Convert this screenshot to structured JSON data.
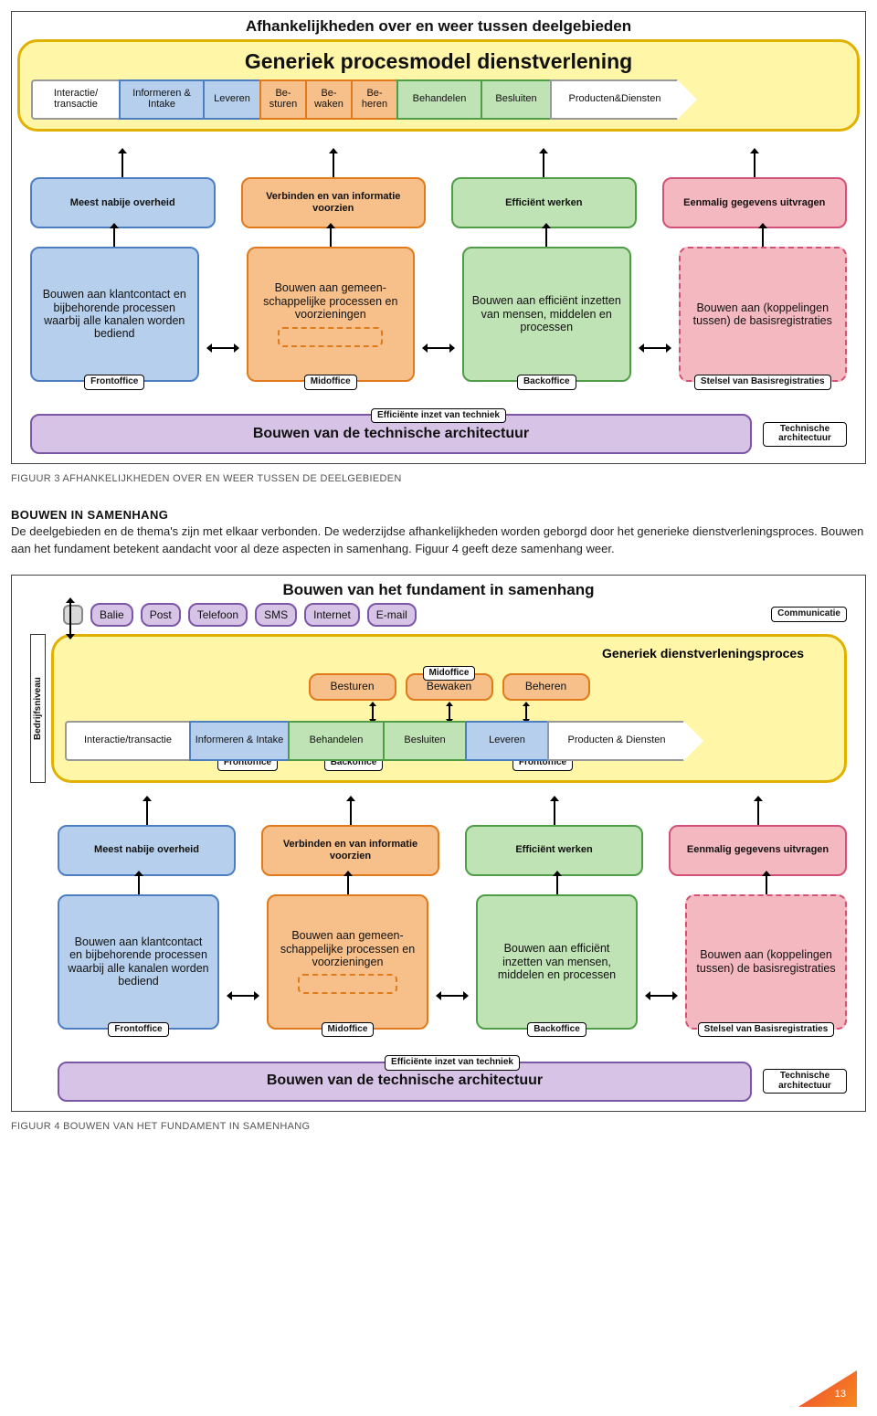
{
  "page_number": "13",
  "caption1": "FIGUUR 3 AFHANKELIJKHEDEN OVER EN WEER TUSSEN DE DEELGEBIEDEN",
  "caption2": "FIGUUR 4 BOUWEN VAN HET FUNDAMENT IN SAMENHANG",
  "section_heading": "BOUWEN IN SAMENHANG",
  "body_text": "De deelgebieden en de thema's zijn met elkaar verbonden. De wederzijdse afhankelijkheden worden geborgd door het generieke dienstverleningsproces. Bouwen aan het fundament betekent aandacht voor al deze aspecten in samenhang. Figuur 4 geeft deze samenhang weer.",
  "colors": {
    "yellow_fill": "#fff39b",
    "yellow_border": "#d7a600",
    "blue_fill": "#b6cfec",
    "blue_border": "#4e7ec2",
    "orange_fill": "#f7c08b",
    "orange_border": "#e07a1b",
    "green_fill": "#bfe3b4",
    "green_border": "#4f9d46",
    "pink_fill": "#f4b8c1",
    "pink_border": "#d35077",
    "purple_fill": "#d7c3e6",
    "purple_border": "#7b57a6",
    "grey_fill": "#d9d9d9",
    "grey_border": "#777"
  },
  "figure3": {
    "title": "Afhankelijkheden over en weer tussen deelgebieden",
    "yellow_header": "Generiek procesmodel dienstverlening",
    "process_steps": [
      {
        "label": "Interactie/ transactie",
        "fill": "#ffffff",
        "border": "#999999"
      },
      {
        "label": "Informeren & Intake",
        "fill": "#b6cfec",
        "border": "#4e7ec2"
      },
      {
        "label": "Leveren",
        "fill": "#b6cfec",
        "border": "#4e7ec2"
      },
      {
        "label": "Be- sturen",
        "fill": "#f7c08b",
        "border": "#e07a1b"
      },
      {
        "label": "Be- waken",
        "fill": "#f7c08b",
        "border": "#e07a1b"
      },
      {
        "label": "Be- heren",
        "fill": "#f7c08b",
        "border": "#e07a1b"
      },
      {
        "label": "Behandelen",
        "fill": "#bfe3b4",
        "border": "#4f9d46"
      },
      {
        "label": "Besluiten",
        "fill": "#bfe3b4",
        "border": "#4f9d46"
      },
      {
        "label": "Producten&Diensten",
        "fill": "#ffffff",
        "border": "#999999"
      }
    ],
    "themas": [
      {
        "label": "Meest nabije overheid",
        "fill": "#b6cfec",
        "border": "#4e7ec2"
      },
      {
        "label": "Verbinden en van informatie voorzien",
        "fill": "#f7c08b",
        "border": "#e07a1b"
      },
      {
        "label": "Efficiënt werken",
        "fill": "#bfe3b4",
        "border": "#4f9d46"
      },
      {
        "label": "Eenmalig gegevens uitvragen",
        "fill": "#f4b8c1",
        "border": "#d35077"
      }
    ],
    "pillars": [
      {
        "label": "Bouwen aan klantcontact en bijbehorende processen waarbij alle kanalen worden bediend",
        "fill": "#b6cfec",
        "border": "#4e7ec2",
        "bottom": "Frontoffice"
      },
      {
        "label": "Bouwen aan gemeen-schappelijke processen en voorzieningen",
        "fill": "#f7c08b",
        "border": "#e07a1b",
        "bottom": "Midoffice",
        "dashed": true
      },
      {
        "label": "Bouwen aan efficiënt inzetten van mensen, middelen en processen",
        "fill": "#bfe3b4",
        "border": "#4f9d46",
        "bottom": "Backoffice"
      },
      {
        "label": "Bouwen aan (koppelingen tussen) de basisregistraties",
        "fill": "#f4b8c1",
        "border": "#d35077",
        "bottom": "Stelsel van Basisregistraties",
        "dashed_border": true
      }
    ],
    "tech_label": "Efficiënte inzet van techniek",
    "purple_bar": "Bouwen van de technische architectuur",
    "purple_tag": "Technische architectuur"
  },
  "figure4": {
    "title": "Bouwen van het fundament in samenhang",
    "channels": [
      {
        "label": "Balie",
        "fill": "#d7c3e6",
        "border": "#7b57a6"
      },
      {
        "label": "Post",
        "fill": "#d7c3e6",
        "border": "#7b57a6"
      },
      {
        "label": "Telefoon",
        "fill": "#d7c3e6",
        "border": "#7b57a6"
      },
      {
        "label": "SMS",
        "fill": "#d7c3e6",
        "border": "#7b57a6"
      },
      {
        "label": "Internet",
        "fill": "#d7c3e6",
        "border": "#7b57a6"
      },
      {
        "label": "E-mail",
        "fill": "#d7c3e6",
        "border": "#7b57a6"
      }
    ],
    "channel_tag": "Communicatie",
    "side_label": "Bedrijfsniveau",
    "yellow_header": "Generiek dienstverleningsproces",
    "mid_row": [
      {
        "label": "Besturen",
        "fill": "#f7c08b",
        "border": "#e07a1b"
      },
      {
        "label": "Bewaken",
        "fill": "#f7c08b",
        "border": "#e07a1b"
      },
      {
        "label": "Beheren",
        "fill": "#f7c08b",
        "border": "#e07a1b"
      }
    ],
    "mid_tag": "Midoffice",
    "bottom_row": [
      {
        "label": "Interactie/transactie",
        "fill": "#ffffff",
        "border": "#999999",
        "tag": ""
      },
      {
        "label": "Informeren & Intake",
        "fill": "#b6cfec",
        "border": "#4e7ec2",
        "tag": "Frontoffice"
      },
      {
        "label": "Behandelen",
        "fill": "#bfe3b4",
        "border": "#4f9d46",
        "tag": "Backoffice"
      },
      {
        "label": "Besluiten",
        "fill": "#bfe3b4",
        "border": "#4f9d46",
        "tag": ""
      },
      {
        "label": "Leveren",
        "fill": "#b6cfec",
        "border": "#4e7ec2",
        "tag": "Frontoffice"
      },
      {
        "label": "Producten & Diensten",
        "fill": "#ffffff",
        "border": "#999999",
        "tag": ""
      }
    ],
    "themas": [
      {
        "label": "Meest nabije overheid",
        "fill": "#b6cfec",
        "border": "#4e7ec2"
      },
      {
        "label": "Verbinden en van informatie voorzien",
        "fill": "#f7c08b",
        "border": "#e07a1b"
      },
      {
        "label": "Efficiënt werken",
        "fill": "#bfe3b4",
        "border": "#4f9d46"
      },
      {
        "label": "Eenmalig gegevens uitvragen",
        "fill": "#f4b8c1",
        "border": "#d35077"
      }
    ],
    "pillars": [
      {
        "label": "Bouwen aan klantcontact en bijbehorende processen waarbij alle kanalen worden bediend",
        "fill": "#b6cfec",
        "border": "#4e7ec2",
        "bottom": "Frontoffice"
      },
      {
        "label": "Bouwen aan gemeen-schappelijke processen en voorzieningen",
        "fill": "#f7c08b",
        "border": "#e07a1b",
        "bottom": "Midoffice",
        "dashed": true
      },
      {
        "label": "Bouwen aan efficiënt inzetten van mensen, middelen en processen",
        "fill": "#bfe3b4",
        "border": "#4f9d46",
        "bottom": "Backoffice"
      },
      {
        "label": "Bouwen aan (koppelingen tussen) de basisregistraties",
        "fill": "#f4b8c1",
        "border": "#d35077",
        "bottom": "Stelsel van Basisregistraties",
        "dashed_border": true
      }
    ],
    "tech_label": "Efficiënte inzet van techniek",
    "purple_bar": "Bouwen van de technische architectuur",
    "purple_tag": "Technische architectuur"
  }
}
